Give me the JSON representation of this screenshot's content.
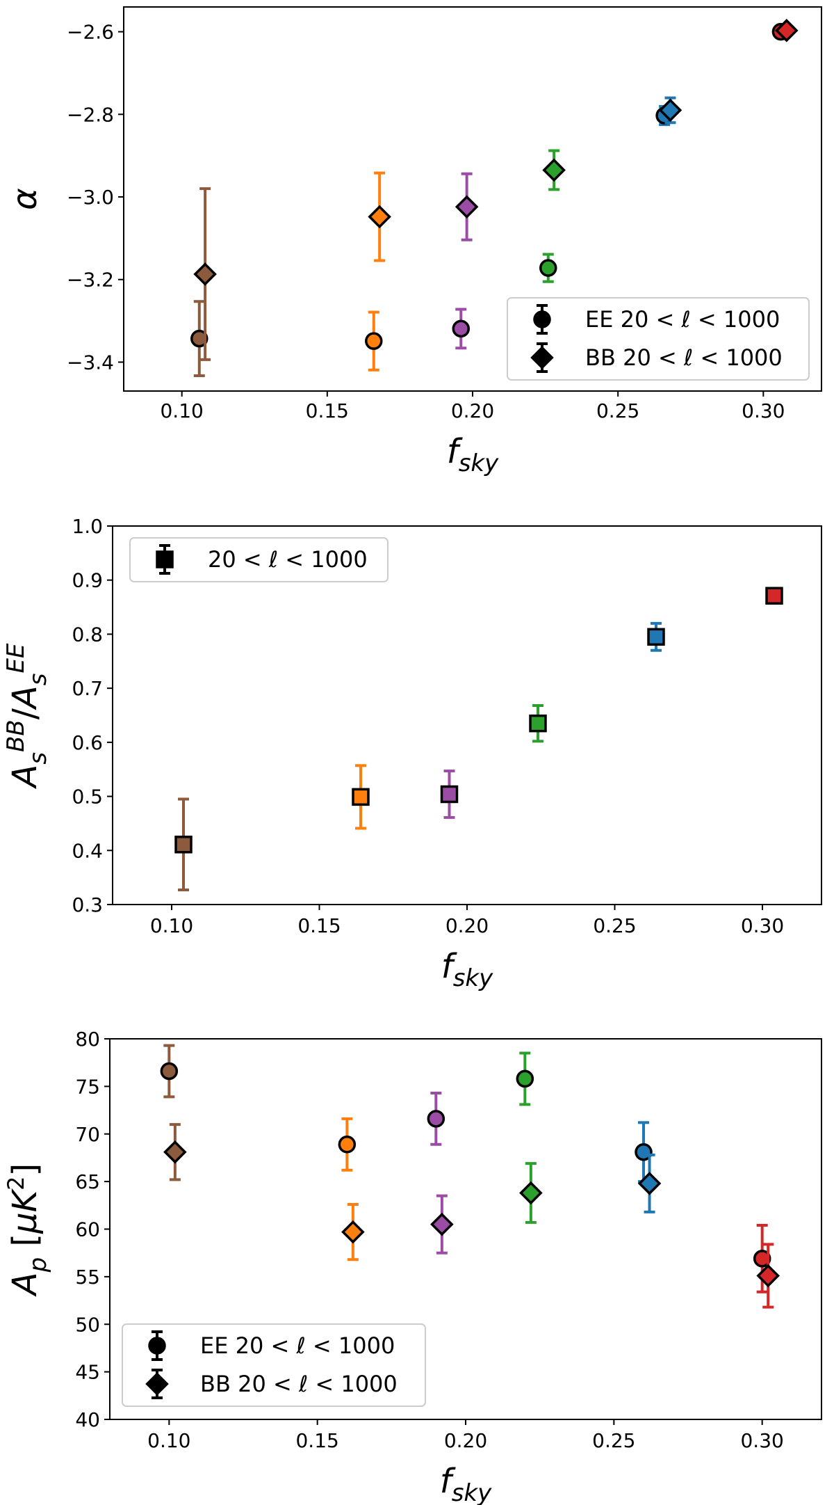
{
  "colors": {
    "brown": "#8c5a3c",
    "orange": "#ff7f0e",
    "purple": "#9b4da6",
    "green": "#2ca02c",
    "blue": "#1f77b4",
    "red": "#d62728"
  },
  "chart_data": [
    {
      "type": "scatter",
      "title": "",
      "xlabel": "f_sky",
      "ylabel": "α",
      "xlim": [
        0.08,
        0.32
      ],
      "ylim": [
        -3.47,
        -2.54
      ],
      "xticks": [
        "0.10",
        "0.15",
        "0.20",
        "0.25",
        "0.30"
      ],
      "yticks": [
        "−3.4",
        "−3.2",
        "−3.0",
        "−2.8",
        "−2.6"
      ],
      "legend": [
        {
          "marker": "circle",
          "label": "EE 20 < ℓ < 1000"
        },
        {
          "marker": "diamond",
          "label": "BB 20 < ℓ < 1000"
        }
      ],
      "legend_position": "lower-right",
      "series": [
        {
          "name": "EE 20 < ℓ < 1000",
          "marker": "circle",
          "points": [
            {
              "x": 0.106,
              "y": -3.343,
              "err": 0.09,
              "color": "brown"
            },
            {
              "x": 0.166,
              "y": -3.349,
              "err": 0.07,
              "color": "orange"
            },
            {
              "x": 0.196,
              "y": -3.319,
              "err": 0.047,
              "color": "purple"
            },
            {
              "x": 0.226,
              "y": -3.172,
              "err": 0.033,
              "color": "green"
            },
            {
              "x": 0.266,
              "y": -2.803,
              "err": 0.022,
              "color": "blue"
            },
            {
              "x": 0.306,
              "y": -2.6,
              "err": 0.01,
              "color": "red"
            }
          ]
        },
        {
          "name": "BB 20 < ℓ < 1000",
          "marker": "diamond",
          "points": [
            {
              "x": 0.108,
              "y": -3.187,
              "err": 0.207,
              "color": "brown"
            },
            {
              "x": 0.168,
              "y": -3.048,
              "err": 0.106,
              "color": "orange"
            },
            {
              "x": 0.198,
              "y": -3.024,
              "err": 0.08,
              "color": "purple"
            },
            {
              "x": 0.228,
              "y": -2.935,
              "err": 0.047,
              "color": "green"
            },
            {
              "x": 0.268,
              "y": -2.79,
              "err": 0.03,
              "color": "blue"
            },
            {
              "x": 0.308,
              "y": -2.597,
              "err": 0.01,
              "color": "red"
            }
          ]
        }
      ]
    },
    {
      "type": "scatter",
      "title": "",
      "xlabel": "f_sky",
      "ylabel": "A_s^BB / A_s^EE",
      "xlim": [
        0.08,
        0.32
      ],
      "ylim": [
        0.3,
        1.0
      ],
      "xticks": [
        "0.10",
        "0.15",
        "0.20",
        "0.25",
        "0.30"
      ],
      "yticks": [
        "0.3",
        "0.4",
        "0.5",
        "0.6",
        "0.7",
        "0.8",
        "0.9",
        "1.0"
      ],
      "legend": [
        {
          "marker": "square",
          "label": "20 < ℓ < 1000"
        }
      ],
      "legend_position": "upper-left",
      "series": [
        {
          "name": "20 < ℓ < 1000",
          "marker": "square",
          "points": [
            {
              "x": 0.104,
              "y": 0.411,
              "err": 0.084,
              "color": "brown"
            },
            {
              "x": 0.164,
              "y": 0.499,
              "err": 0.058,
              "color": "orange"
            },
            {
              "x": 0.194,
              "y": 0.504,
              "err": 0.043,
              "color": "purple"
            },
            {
              "x": 0.224,
              "y": 0.635,
              "err": 0.033,
              "color": "green"
            },
            {
              "x": 0.264,
              "y": 0.795,
              "err": 0.025,
              "color": "blue"
            },
            {
              "x": 0.304,
              "y": 0.871,
              "err": 0.008,
              "color": "red"
            }
          ]
        }
      ]
    },
    {
      "type": "scatter",
      "title": "",
      "xlabel": "f_sky",
      "ylabel": "A_p [μK²]",
      "xlim": [
        0.08,
        0.32
      ],
      "ylim": [
        40,
        80
      ],
      "xticks": [
        "0.10",
        "0.15",
        "0.20",
        "0.25",
        "0.30"
      ],
      "yticks": [
        "40",
        "45",
        "50",
        "55",
        "60",
        "65",
        "70",
        "75",
        "80"
      ],
      "legend": [
        {
          "marker": "circle",
          "label": "EE 20 < ℓ < 1000"
        },
        {
          "marker": "diamond",
          "label": "BB 20 < ℓ < 1000"
        }
      ],
      "legend_position": "lower-left",
      "series": [
        {
          "name": "EE 20 < ℓ < 1000",
          "marker": "circle",
          "points": [
            {
              "x": 0.1,
              "y": 76.6,
              "err": 2.7,
              "color": "brown"
            },
            {
              "x": 0.16,
              "y": 68.9,
              "err": 2.7,
              "color": "orange"
            },
            {
              "x": 0.19,
              "y": 71.6,
              "err": 2.7,
              "color": "purple"
            },
            {
              "x": 0.22,
              "y": 75.8,
              "err": 2.7,
              "color": "green"
            },
            {
              "x": 0.26,
              "y": 68.1,
              "err": 3.1,
              "color": "blue"
            },
            {
              "x": 0.3,
              "y": 56.9,
              "err": 3.5,
              "color": "red"
            }
          ]
        },
        {
          "name": "BB 20 < ℓ < 1000",
          "marker": "diamond",
          "points": [
            {
              "x": 0.102,
              "y": 68.1,
              "err": 2.9,
              "color": "brown"
            },
            {
              "x": 0.162,
              "y": 59.7,
              "err": 2.9,
              "color": "orange"
            },
            {
              "x": 0.192,
              "y": 60.5,
              "err": 3.0,
              "color": "purple"
            },
            {
              "x": 0.222,
              "y": 63.8,
              "err": 3.1,
              "color": "green"
            },
            {
              "x": 0.262,
              "y": 64.8,
              "err": 3.0,
              "color": "blue"
            },
            {
              "x": 0.302,
              "y": 55.1,
              "err": 3.3,
              "color": "red"
            }
          ]
        }
      ]
    }
  ]
}
